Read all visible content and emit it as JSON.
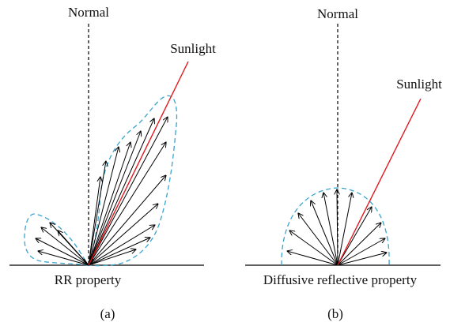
{
  "panels": [
    {
      "id": "a",
      "normal_label": "Normal",
      "sunlight_label": "Sunlight",
      "property_label": "RR property",
      "caption": "(a)"
    },
    {
      "id": "b",
      "normal_label": "Normal",
      "sunlight_label": "Sunlight",
      "property_label": "Diffusive reflective property",
      "caption": "(b)"
    }
  ],
  "colors": {
    "sunlight_ray": "#e0191f",
    "envelope": "#3aa3cf",
    "arrows": "#000000",
    "normal": "#000000",
    "surface": "#000000",
    "text": "#111111"
  }
}
